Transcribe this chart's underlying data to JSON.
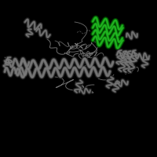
{
  "background_color": "#000000",
  "helix_color": "#7a7a7a",
  "helix_color2": "#555555",
  "green_color": "#22bb22",
  "green_color2": "#118811",
  "figsize": [
    2.0,
    2.0
  ],
  "dpi": 100,
  "xlim": [
    0,
    200
  ],
  "ylim": [
    0,
    200
  ]
}
